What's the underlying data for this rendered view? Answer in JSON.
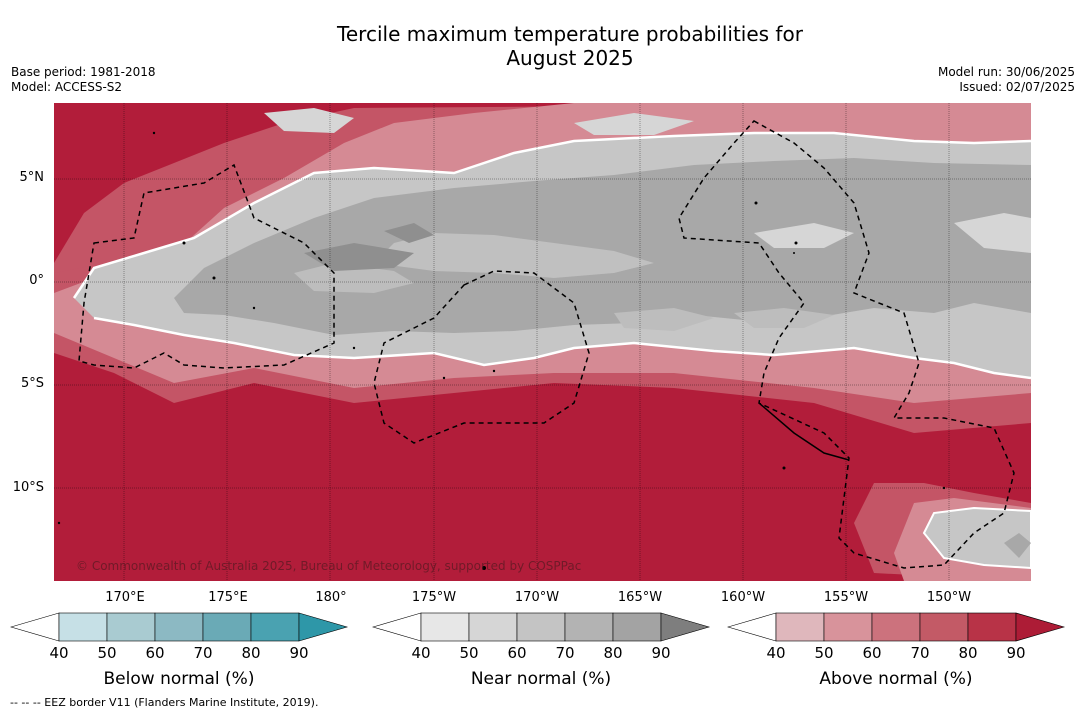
{
  "title_line1": "Tercile maximum temperature probabilities for",
  "title_line2": "August 2025",
  "base_period": "Base period: 1981-2018",
  "model": "Model: ACCESS-S2",
  "model_run": "Model run: 30/06/2025",
  "issued": "Issued: 02/07/2025",
  "lat_labels": [
    "5°N",
    "0°",
    "5°S",
    "10°S"
  ],
  "lon_labels": [
    "170°E",
    "175°E",
    "180°",
    "175°W",
    "170°W",
    "165°W",
    "160°W",
    "155°W",
    "150°W"
  ],
  "credit": "© Commonwealth of Australia 2025, Bureau of Meteorology, supported by COSPPac",
  "colorbars": [
    {
      "caption": "Below normal (%)",
      "ticks": [
        "40",
        "50",
        "60",
        "70",
        "80",
        "90"
      ],
      "colors": [
        "#ffffff",
        "#c6e0e6",
        "#a9cbd1",
        "#8cb9c3",
        "#6aaab6",
        "#4aa2b1",
        "#2e97a8"
      ]
    },
    {
      "caption": "Near normal (%)",
      "ticks": [
        "40",
        "50",
        "60",
        "70",
        "80",
        "90"
      ],
      "colors": [
        "#ffffff",
        "#e7e7e7",
        "#d6d6d6",
        "#c4c4c4",
        "#b3b3b3",
        "#a3a3a3",
        "#7e7e7e"
      ]
    },
    {
      "caption": "Above normal (%)",
      "ticks": [
        "40",
        "50",
        "60",
        "70",
        "80",
        "90"
      ],
      "colors": [
        "#ffffff",
        "#dfb7bc",
        "#d8939b",
        "#cc727d",
        "#c35a66",
        "#b83347",
        "#ad1c36"
      ]
    }
  ],
  "footnote": "--  --  -- EEZ border V11 (Flanders Marine Institute, 2019)."
}
